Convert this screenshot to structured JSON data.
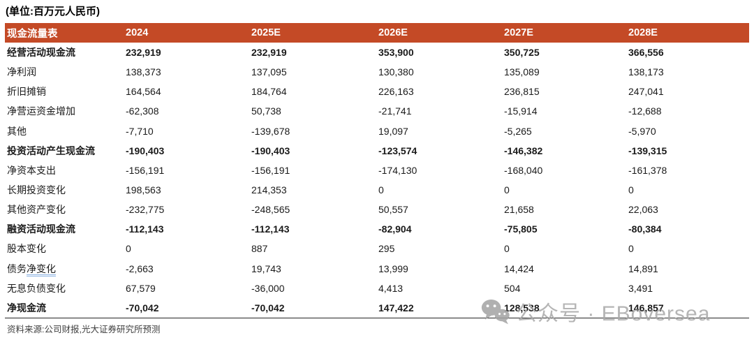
{
  "title": "(单位:百万元人民币)",
  "colors": {
    "header_bg": "#C44A26",
    "header_text": "#FFFFFF",
    "body_text": "#1A1A1A",
    "grammar_underline": "#8DB3E2",
    "watermark_gray": "#A9A9A9",
    "table_bottom_border": "#262626"
  },
  "table": {
    "header": [
      "现金流量表",
      "2024",
      "2025E",
      "2026E",
      "2027E",
      "2028E"
    ],
    "rows": [
      {
        "label": "经营活动现金流",
        "bold": true,
        "values": [
          "232,919",
          "232,919",
          "353,900",
          "350,725",
          "366,556"
        ]
      },
      {
        "label": "净利润",
        "bold": false,
        "values": [
          "138,373",
          "137,095",
          "130,380",
          "135,089",
          "138,173"
        ]
      },
      {
        "label": "折旧摊销",
        "bold": false,
        "values": [
          "164,564",
          "184,764",
          "226,163",
          "236,815",
          "247,041"
        ]
      },
      {
        "label": "净营运资金增加",
        "bold": false,
        "values": [
          "-62,308",
          "50,738",
          "-21,741",
          "-15,914",
          "-12,688"
        ]
      },
      {
        "label": "其他",
        "bold": false,
        "values": [
          "-7,710",
          "-139,678",
          "19,097",
          "-5,265",
          "-5,970"
        ]
      },
      {
        "label": "投资活动产生现金流",
        "bold": true,
        "values": [
          "-190,403",
          "-190,403",
          "-123,574",
          "-146,382",
          "-139,315"
        ]
      },
      {
        "label": "净资本支出",
        "bold": false,
        "values": [
          "-156,191",
          "-156,191",
          "-174,130",
          "-168,040",
          "-161,378"
        ]
      },
      {
        "label": "长期投资变化",
        "bold": false,
        "values": [
          "198,563",
          "214,353",
          "0",
          "0",
          "0"
        ]
      },
      {
        "label": "其他资产变化",
        "bold": false,
        "values": [
          "-232,775",
          "-248,565",
          "50,557",
          "21,658",
          "22,063"
        ]
      },
      {
        "label": "融资活动现金流",
        "bold": true,
        "values": [
          "-112,143",
          "-112,143",
          "-82,904",
          "-75,805",
          "-80,384"
        ]
      },
      {
        "label": "股本变化",
        "bold": false,
        "values": [
          "0",
          "887",
          "295",
          "0",
          "0"
        ]
      },
      {
        "label": "债务净变化",
        "bold": false,
        "label_prefix": "债务",
        "label_underline": "净变化",
        "values": [
          "-2,663",
          "19,743",
          "13,999",
          "14,424",
          "14,891"
        ]
      },
      {
        "label": "无息负债变化",
        "bold": false,
        "values": [
          "67,579",
          "-36,000",
          "4,413",
          "504",
          "3,491"
        ]
      },
      {
        "label": "净现金流",
        "bold": true,
        "values": [
          "-70,042",
          "-70,042",
          "147,422",
          "128,538",
          "146,857"
        ]
      }
    ]
  },
  "footer": {
    "source": "资料来源:公司财报,光大证券研究所预测"
  },
  "watermark": {
    "icon": "wechat-icon",
    "text": "公众号 · EBoversea"
  }
}
